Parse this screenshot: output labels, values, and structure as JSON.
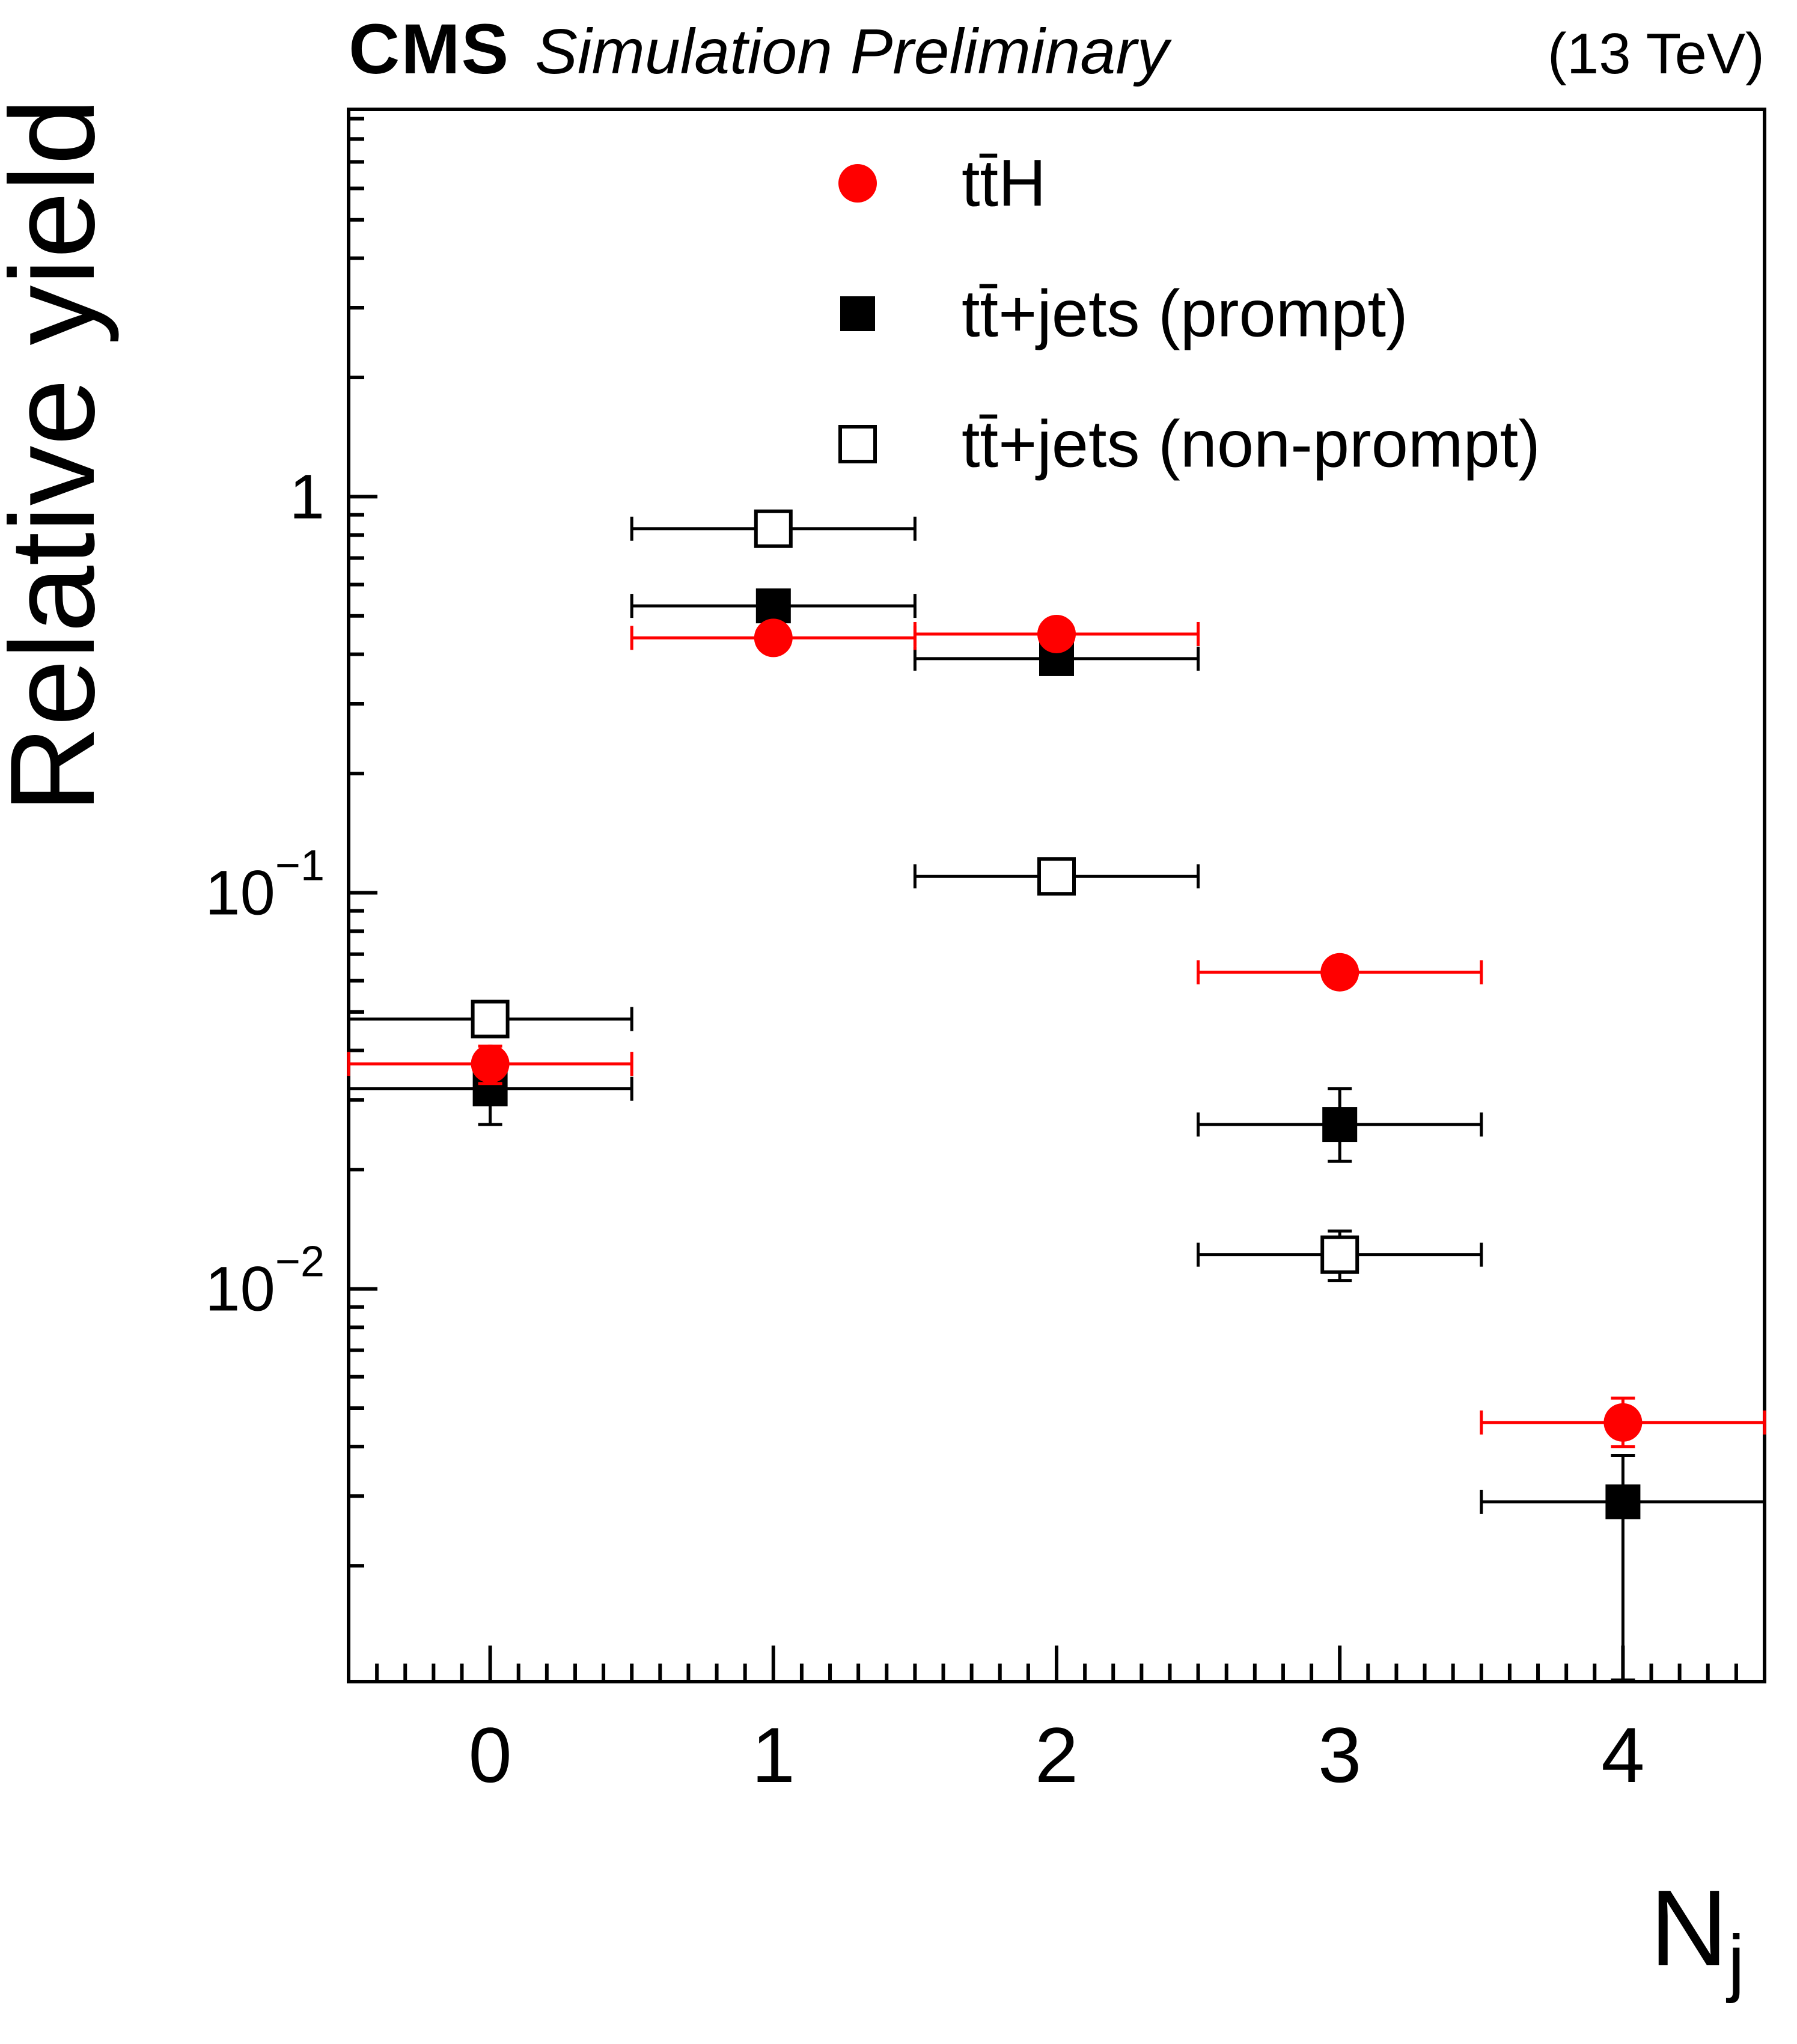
{
  "header": {
    "experiment": "CMS",
    "context": "Simulation Preliminary",
    "energy": "(13 TeV)"
  },
  "chart_data": {
    "type": "scatter",
    "title": "",
    "ylabel": "Relative yield",
    "xlabel_main": "N",
    "xlabel_sub": "j",
    "y_scale": "log",
    "xlim": [
      -0.5,
      4.5
    ],
    "ylim": [
      0.00102,
      9.5
    ],
    "grid": false,
    "legend_position": "top-inside",
    "x_ticks": [
      {
        "v": 0,
        "label": "0"
      },
      {
        "v": 1,
        "label": "1"
      },
      {
        "v": 2,
        "label": "2"
      },
      {
        "v": 3,
        "label": "3"
      },
      {
        "v": 4,
        "label": "4"
      }
    ],
    "y_ticks": [
      {
        "v": 1,
        "base": "1",
        "exp": ""
      },
      {
        "v": 0.1,
        "base": "10",
        "exp": "−1"
      },
      {
        "v": 0.01,
        "base": "10",
        "exp": "−2"
      }
    ],
    "series": [
      {
        "name": "tt̄H",
        "marker": "filled-circle",
        "color": "#ff0000",
        "bin_half_width": 0.5,
        "points": [
          {
            "x": 0,
            "y": 0.037,
            "y_lo": 0.033,
            "y_hi": 0.041
          },
          {
            "x": 1,
            "y": 0.44,
            "y_lo": 0.43,
            "y_hi": 0.45
          },
          {
            "x": 2,
            "y": 0.45,
            "y_lo": 0.44,
            "y_hi": 0.46
          },
          {
            "x": 3,
            "y": 0.063,
            "y_lo": 0.059,
            "y_hi": 0.067
          },
          {
            "x": 4,
            "y": 0.0046,
            "y_lo": 0.004,
            "y_hi": 0.0053
          }
        ]
      },
      {
        "name": "tt̄+jets (prompt)",
        "marker": "filled-square",
        "color": "#000000",
        "bin_half_width": 0.5,
        "points": [
          {
            "x": 0,
            "y": 0.032,
            "y_lo": 0.026,
            "y_hi": 0.038
          },
          {
            "x": 1,
            "y": 0.53,
            "y_lo": 0.51,
            "y_hi": 0.55
          },
          {
            "x": 2,
            "y": 0.39,
            "y_lo": 0.38,
            "y_hi": 0.4
          },
          {
            "x": 3,
            "y": 0.026,
            "y_lo": 0.021,
            "y_hi": 0.032
          },
          {
            "x": 4,
            "y": 0.0029,
            "y_lo": 0.00103,
            "y_hi": 0.0038
          }
        ]
      },
      {
        "name": "tt̄+jets (non-prompt)",
        "marker": "open-square",
        "color": "#000000",
        "bin_half_width": 0.5,
        "points": [
          {
            "x": 0,
            "y": 0.048,
            "y_lo": 0.044,
            "y_hi": 0.053
          },
          {
            "x": 1,
            "y": 0.83,
            "y_lo": 0.8,
            "y_hi": 0.86
          },
          {
            "x": 2,
            "y": 0.11,
            "y_lo": 0.105,
            "y_hi": 0.115
          },
          {
            "x": 3,
            "y": 0.0122,
            "y_lo": 0.0105,
            "y_hi": 0.014
          }
        ]
      }
    ]
  }
}
